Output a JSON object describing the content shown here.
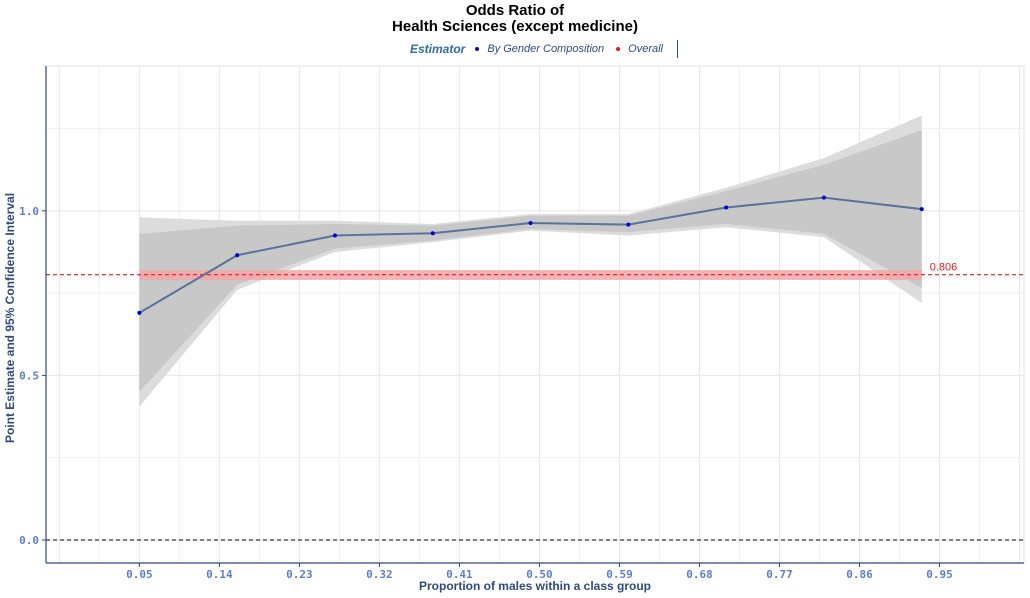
{
  "chart_data": {
    "type": "line",
    "title_line1": "Odds Ratio of",
    "title_line2": "Health Sciences (except medicine)",
    "xlabel": "Proportion of males within a class group",
    "ylabel": "Point Estimate and 95% Confidence Interval",
    "legend": {
      "title": "Estimator",
      "entries": [
        {
          "label": "By Gender Composition",
          "color": "#0000cc"
        },
        {
          "label": "Overall",
          "color": "#e41a1c"
        }
      ],
      "placement": "top"
    },
    "x_ticks": [
      "0.05",
      "0.14",
      "0.23",
      "0.32",
      "0.41",
      "0.50",
      "0.59",
      "0.68",
      "0.77",
      "0.86",
      "0.95"
    ],
    "y_ticks": [
      "0.0",
      "0.5",
      "1.0"
    ],
    "xlim": [
      -0.055,
      1.045
    ],
    "ylim": [
      -0.07,
      1.44
    ],
    "grid": true,
    "series": [
      {
        "x": [
          0.05,
          0.16,
          0.27,
          0.38,
          0.49,
          0.6,
          0.71,
          0.82,
          0.93
        ],
        "y": [
          0.69,
          0.865,
          0.925,
          0.932,
          0.963,
          0.958,
          1.01,
          1.04,
          1.005
        ],
        "ci95_lower": [
          0.405,
          0.76,
          0.875,
          0.905,
          0.94,
          0.925,
          0.95,
          0.92,
          0.72
        ],
        "ci95_upper": [
          0.98,
          0.97,
          0.97,
          0.96,
          0.99,
          0.99,
          1.07,
          1.16,
          1.29
        ],
        "ci_inner_lower": [
          0.45,
          0.775,
          0.885,
          0.91,
          0.945,
          0.935,
          0.96,
          0.93,
          0.765
        ],
        "ci_inner_upper": [
          0.93,
          0.955,
          0.96,
          0.955,
          0.985,
          0.985,
          1.06,
          1.14,
          1.245
        ],
        "line_color": "#5a7399",
        "point_color": "#0000cc"
      }
    ],
    "overall": {
      "value": 0.806,
      "label": "0.806",
      "ci_lower": 0.79,
      "ci_upper": 0.82,
      "color": "#e41a1c"
    },
    "reference_line": 0.0
  }
}
